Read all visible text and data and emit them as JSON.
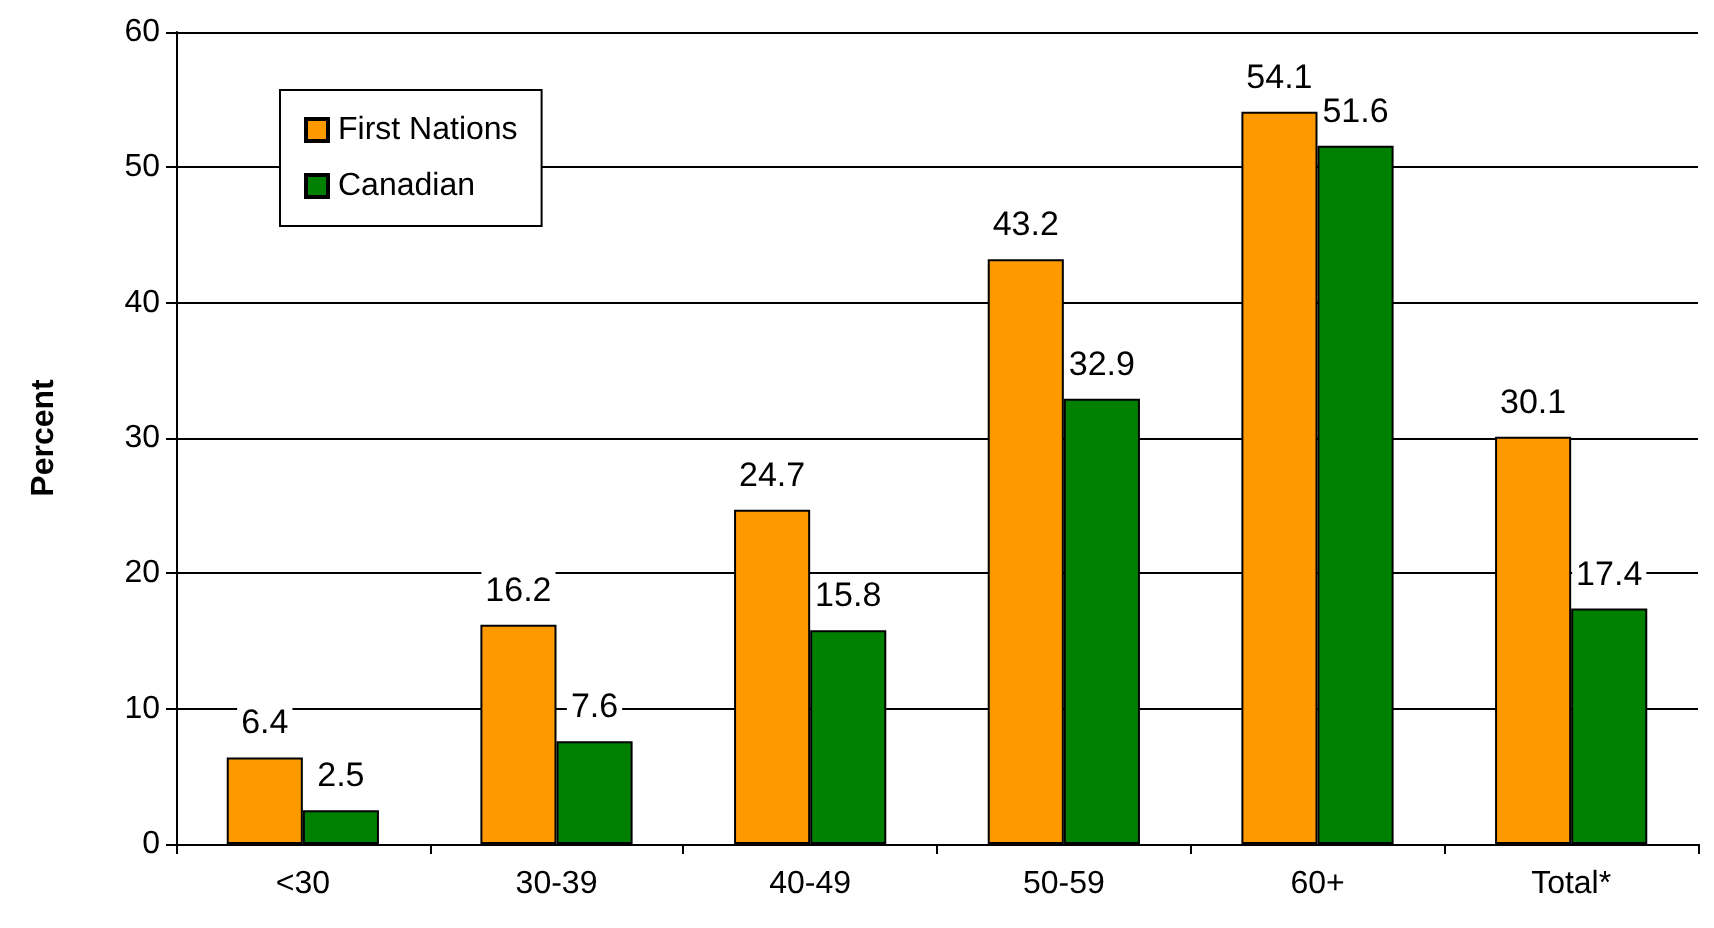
{
  "chart_data": {
    "type": "bar",
    "ylabel": "Percent",
    "categories": [
      "<30",
      "30-39",
      "40-49",
      "50-59",
      "60+",
      "Total*"
    ],
    "series": [
      {
        "name": "First Nations",
        "color": "#ff9900",
        "values": [
          6.4,
          16.2,
          24.7,
          43.2,
          54.1,
          30.1
        ]
      },
      {
        "name": "Canadian",
        "color": "#008000",
        "values": [
          2.5,
          7.6,
          15.8,
          32.9,
          51.6,
          17.4
        ]
      }
    ],
    "ylim": [
      0,
      60
    ],
    "yticks": [
      0,
      10,
      20,
      30,
      40,
      50,
      60
    ],
    "grid": "y",
    "legend": "top left",
    "data_labels": true
  }
}
